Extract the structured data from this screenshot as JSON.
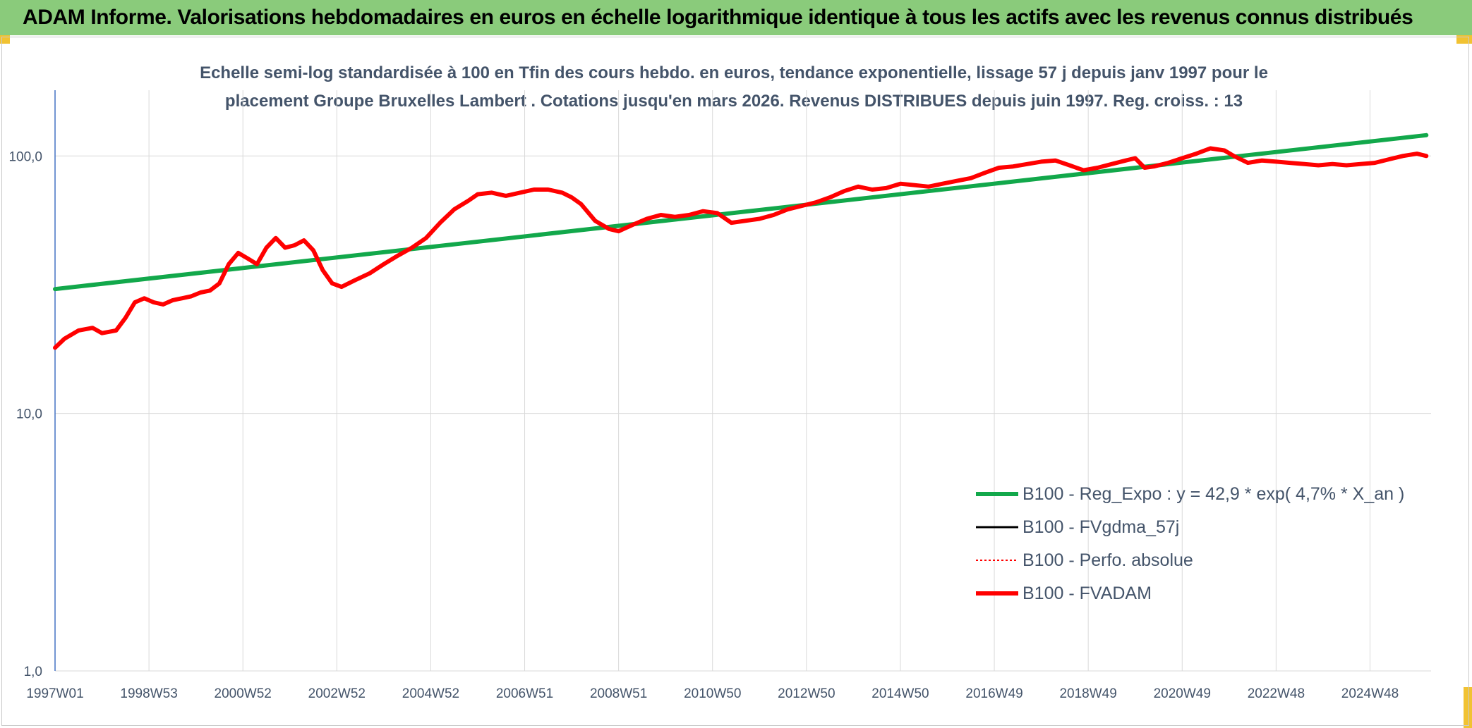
{
  "header": {
    "title": "ADAM Informe. Valorisations hebdomadaires en euros en échelle logarithmique identique à tous les actifs avec les revenus connus distribués"
  },
  "chart_data": {
    "type": "line",
    "title_line1": "Echelle semi-log standardisée à 100 en Tfin des cours hebdo. en euros, tendance exponentielle, lissage 57 j depuis janv 1997 pour le",
    "title_line2": "placement Groupe Bruxelles Lambert . Cotations jusqu'en mars 2026. Revenus DISTRIBUES depuis juin 1997. Reg. croiss. : 13",
    "y_scale": "log",
    "ylim": [
      1,
      180
    ],
    "y_ticks": [
      "1,0",
      "10,0",
      "100,0"
    ],
    "x_tick_labels": [
      "1997W01",
      "1998W53",
      "2000W52",
      "2002W52",
      "2004W52",
      "2006W51",
      "2008W51",
      "2010W50",
      "2012W50",
      "2014W50",
      "2016W49",
      "2018W49",
      "2020W49",
      "2022W48",
      "2024W48"
    ],
    "xlim": [
      1997.0,
      2026.3
    ],
    "grid": "vertical and horizontal",
    "legend_position": "bottom-right",
    "series": [
      {
        "name": "B100 - Reg_Expo : y = 42,9 * exp( 4,7% *  X_an )",
        "color": "#12a84b",
        "style": "solid-thick",
        "x": [
          1997.0,
          2026.2
        ],
        "y": [
          30.4,
          120.4
        ]
      },
      {
        "name": "B100 - FVgdma_57j",
        "color": "#000000",
        "style": "solid",
        "x": [
          1997.0,
          1997.2,
          1997.5,
          1997.8,
          1998.0,
          1998.3,
          1998.5,
          1998.7,
          1998.9,
          1999.1,
          1999.3,
          1999.5,
          1999.7,
          1999.9,
          2000.1,
          2000.3,
          2000.5,
          2000.7,
          2000.9,
          2001.1,
          2001.3,
          2001.5,
          2001.7,
          2001.9,
          2002.1,
          2002.3,
          2002.5,
          2002.7,
          2002.9,
          2003.1,
          2003.4,
          2003.7,
          2004.0,
          2004.3,
          2004.6,
          2004.9,
          2005.2,
          2005.5,
          2005.8,
          2006.0,
          2006.3,
          2006.6,
          2006.9,
          2007.2,
          2007.5,
          2007.8,
          2008.0,
          2008.2,
          2008.5,
          2008.8,
          2009.0,
          2009.3,
          2009.6,
          2009.9,
          2010.2,
          2010.5,
          2010.8,
          2011.1,
          2011.4,
          2011.7,
          2012.0,
          2012.3,
          2012.6,
          2012.9,
          2013.2,
          2013.5,
          2013.8,
          2014.1,
          2014.4,
          2014.7,
          2015.0,
          2015.3,
          2015.6,
          2015.9,
          2016.2,
          2016.5,
          2016.8,
          2017.1,
          2017.4,
          2017.7,
          2018.0,
          2018.3,
          2018.6,
          2018.9,
          2019.2,
          2019.5,
          2019.8,
          2020.0,
          2020.2,
          2020.4,
          2020.7,
          2021.0,
          2021.3,
          2021.6,
          2021.9,
          2022.1,
          2022.4,
          2022.7,
          2023.0,
          2023.3,
          2023.6,
          2023.9,
          2024.2,
          2024.5,
          2024.8,
          2025.1,
          2025.4,
          2025.7,
          2026.0,
          2026.2
        ],
        "y": [
          18.0,
          19.5,
          21.0,
          21.5,
          20.5,
          21.0,
          23.5,
          27.0,
          28.0,
          27.0,
          26.5,
          27.5,
          28.0,
          28.5,
          29.5,
          30.0,
          32.0,
          38.0,
          42.0,
          40.0,
          38.0,
          44.0,
          48.0,
          44.0,
          45.0,
          47.0,
          43.0,
          36.0,
          32.0,
          31.0,
          33.0,
          35.0,
          38.0,
          41.0,
          44.0,
          48.0,
          55.0,
          62.0,
          67.0,
          71.0,
          72.0,
          70.0,
          72.0,
          74.0,
          74.0,
          72.0,
          69.0,
          65.0,
          56.0,
          52.0,
          51.0,
          54.0,
          57.0,
          59.0,
          58.0,
          59.0,
          61.0,
          60.0,
          55.0,
          56.0,
          57.0,
          59.0,
          62.0,
          64.0,
          66.0,
          69.0,
          73.0,
          76.0,
          74.0,
          75.0,
          78.0,
          77.0,
          76.0,
          78.0,
          80.0,
          82.0,
          86.0,
          90.0,
          91.0,
          93.0,
          95.0,
          96.0,
          92.0,
          88.0,
          90.0,
          93.0,
          96.0,
          98.0,
          90.0,
          91.0,
          94.0,
          98.0,
          102.0,
          107.0,
          105.0,
          100.0,
          94.0,
          96.0,
          95.0,
          94.0,
          93.0,
          92.0,
          93.0,
          92.0,
          93.0,
          94.0,
          97.0,
          100.0,
          102.0,
          100.0
        ]
      },
      {
        "name": "B100 - Perfo. absolue",
        "color": "#ff0000",
        "style": "dotted",
        "x": [],
        "y": []
      },
      {
        "name": "B100 - FVADAM",
        "color": "#ff0000",
        "style": "solid-thick",
        "x": [
          1997.0,
          1997.2,
          1997.5,
          1997.8,
          1998.0,
          1998.3,
          1998.5,
          1998.7,
          1998.9,
          1999.1,
          1999.3,
          1999.5,
          1999.7,
          1999.9,
          2000.1,
          2000.3,
          2000.5,
          2000.7,
          2000.9,
          2001.1,
          2001.3,
          2001.5,
          2001.7,
          2001.9,
          2002.1,
          2002.3,
          2002.5,
          2002.7,
          2002.9,
          2003.1,
          2003.4,
          2003.7,
          2004.0,
          2004.3,
          2004.6,
          2004.9,
          2005.2,
          2005.5,
          2005.8,
          2006.0,
          2006.3,
          2006.6,
          2006.9,
          2007.2,
          2007.5,
          2007.8,
          2008.0,
          2008.2,
          2008.5,
          2008.8,
          2009.0,
          2009.3,
          2009.6,
          2009.9,
          2010.2,
          2010.5,
          2010.8,
          2011.1,
          2011.4,
          2011.7,
          2012.0,
          2012.3,
          2012.6,
          2012.9,
          2013.2,
          2013.5,
          2013.8,
          2014.1,
          2014.4,
          2014.7,
          2015.0,
          2015.3,
          2015.6,
          2015.9,
          2016.2,
          2016.5,
          2016.8,
          2017.1,
          2017.4,
          2017.7,
          2018.0,
          2018.3,
          2018.6,
          2018.9,
          2019.2,
          2019.5,
          2019.8,
          2020.0,
          2020.2,
          2020.4,
          2020.7,
          2021.0,
          2021.3,
          2021.6,
          2021.9,
          2022.1,
          2022.4,
          2022.7,
          2023.0,
          2023.3,
          2023.6,
          2023.9,
          2024.2,
          2024.5,
          2024.8,
          2025.1,
          2025.4,
          2025.7,
          2026.0,
          2026.2
        ],
        "y": [
          18.0,
          19.5,
          21.0,
          21.5,
          20.5,
          21.0,
          23.5,
          27.0,
          28.0,
          27.0,
          26.5,
          27.5,
          28.0,
          28.5,
          29.5,
          30.0,
          32.0,
          38.0,
          42.0,
          40.0,
          38.0,
          44.0,
          48.0,
          44.0,
          45.0,
          47.0,
          43.0,
          36.0,
          32.0,
          31.0,
          33.0,
          35.0,
          38.0,
          41.0,
          44.0,
          48.0,
          55.0,
          62.0,
          67.0,
          71.0,
          72.0,
          70.0,
          72.0,
          74.0,
          74.0,
          72.0,
          69.0,
          65.0,
          56.0,
          52.0,
          51.0,
          54.0,
          57.0,
          59.0,
          58.0,
          59.0,
          61.0,
          60.0,
          55.0,
          56.0,
          57.0,
          59.0,
          62.0,
          64.0,
          66.0,
          69.0,
          73.0,
          76.0,
          74.0,
          75.0,
          78.0,
          77.0,
          76.0,
          78.0,
          80.0,
          82.0,
          86.0,
          90.0,
          91.0,
          93.0,
          95.0,
          96.0,
          92.0,
          88.0,
          90.0,
          93.0,
          96.0,
          98.0,
          90.0,
          91.0,
          94.0,
          98.0,
          102.0,
          107.0,
          105.0,
          100.0,
          94.0,
          96.0,
          95.0,
          94.0,
          93.0,
          92.0,
          93.0,
          92.0,
          93.0,
          94.0,
          97.0,
          100.0,
          102.0,
          100.0
        ]
      }
    ]
  }
}
